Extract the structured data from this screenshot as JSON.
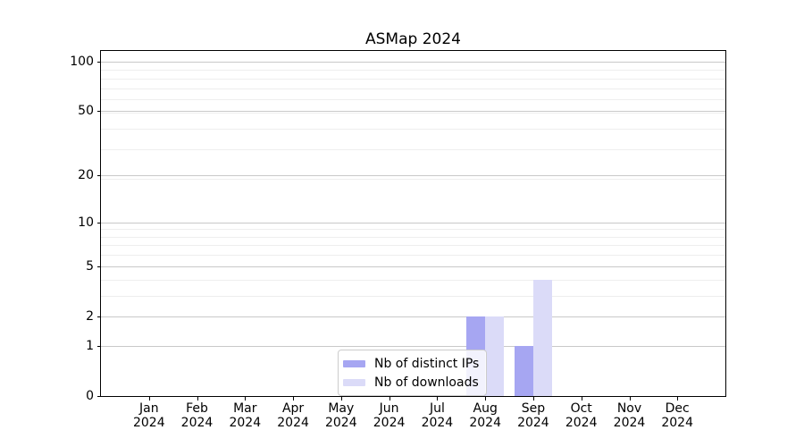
{
  "title": "ASMap 2024",
  "chart_data": {
    "type": "bar",
    "title": "ASMap 2024",
    "categories": [
      "Jan 2024",
      "Feb 2024",
      "Mar 2024",
      "Apr 2024",
      "May 2024",
      "Jun 2024",
      "Jul 2024",
      "Aug 2024",
      "Sep 2024",
      "Oct 2024",
      "Nov 2024",
      "Dec 2024"
    ],
    "series": [
      {
        "name": "Nb of distinct IPs",
        "color": "#a6a6f2",
        "values": [
          0,
          0,
          0,
          0,
          0,
          0,
          0,
          2,
          1,
          0,
          0,
          0
        ]
      },
      {
        "name": "Nb of downloads",
        "color": "#dbdbf8",
        "values": [
          0,
          0,
          0,
          0,
          0,
          0,
          0,
          2,
          4,
          0,
          0,
          0
        ]
      }
    ],
    "xlabel": "",
    "ylabel": "",
    "yscale": "log1p",
    "ylim": [
      0,
      116
    ],
    "yticks": [
      0,
      1,
      2,
      5,
      10,
      20,
      50,
      100
    ],
    "minor_yticks": [
      3,
      4,
      6,
      7,
      8,
      9,
      19,
      29,
      39,
      49,
      59,
      69,
      79,
      89
    ],
    "grid": "horizontal",
    "legend_position": "lower center",
    "colors": {
      "major_grid": "#c9c9c9",
      "minor_grid": "#eeeeee",
      "axis": "#000000",
      "legend_border": "#cccccc"
    }
  }
}
